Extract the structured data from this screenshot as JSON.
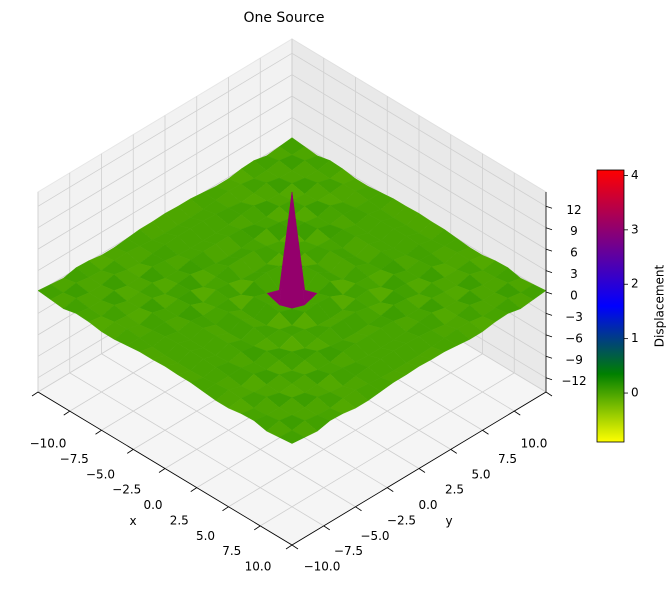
{
  "chart_data": {
    "type": "surface",
    "title": "One Source",
    "xlabel": "x",
    "ylabel": "y",
    "x": [
      -10,
      -9,
      -8,
      -7,
      -6,
      -5,
      -4,
      -3,
      -2,
      -1,
      0,
      1,
      2,
      3,
      4,
      5,
      6,
      7,
      8,
      9,
      10
    ],
    "y": [
      -10,
      -9,
      -8,
      -7,
      -6,
      -5,
      -4,
      -3,
      -2,
      -1,
      0,
      1,
      2,
      3,
      4,
      5,
      6,
      7,
      8,
      9,
      10
    ],
    "z": [
      [
        0.2,
        0,
        -0.2,
        0.2,
        0.1,
        -0.2,
        -0.2,
        0,
        0.2,
        0.2,
        0.3,
        0.2,
        0.2,
        0,
        -0.2,
        -0.2,
        0.1,
        0.2,
        -0.2,
        0,
        0.2
      ],
      [
        0,
        -0.1,
        0.2,
        -0.1,
        -0.2,
        0.1,
        0.2,
        0,
        -0.2,
        -0.3,
        -0.3,
        -0.3,
        -0.2,
        0,
        0.2,
        0.1,
        -0.2,
        -0.1,
        0.2,
        -0.1,
        0
      ],
      [
        -0.2,
        0.2,
        -0.1,
        -0.1,
        0.3,
        -0.1,
        -0.3,
        0,
        0.2,
        0.3,
        0.3,
        0.3,
        0.2,
        0,
        -0.3,
        -0.1,
        0.3,
        -0.1,
        -0.1,
        0.2,
        -0.2
      ],
      [
        0.2,
        -0.1,
        -0.1,
        0.2,
        -0.2,
        -0.1,
        0.3,
        0.1,
        -0.2,
        -0.3,
        -0.3,
        -0.3,
        -0.2,
        0.1,
        0.3,
        -0.1,
        -0.2,
        0.2,
        -0.1,
        -0.1,
        0.2
      ],
      [
        0.1,
        -0.2,
        0.3,
        -0.2,
        0,
        0.2,
        -0.2,
        -0.2,
        0.2,
        0.3,
        0.3,
        0.3,
        0.2,
        -0.2,
        -0.2,
        0.2,
        0,
        -0.2,
        0.3,
        -0.2,
        0.1
      ],
      [
        -0.2,
        0.1,
        -0.1,
        -0.1,
        0.2,
        -0.3,
        0.1,
        0.3,
        -0.1,
        -0.3,
        -0.4,
        -0.3,
        -0.1,
        0.3,
        0.1,
        -0.3,
        0.2,
        -0.1,
        -0.1,
        0.1,
        -0.2
      ],
      [
        -0.2,
        0.2,
        -0.3,
        0.3,
        -0.2,
        0.1,
        0.2,
        -0.4,
        0,
        0.4,
        0.4,
        0.4,
        0,
        -0.4,
        0.2,
        0.1,
        -0.2,
        0.3,
        -0.3,
        0.2,
        -0.2
      ],
      [
        0,
        0,
        0,
        0.1,
        -0.2,
        0.3,
        -0.4,
        0.3,
        0.1,
        -0.4,
        -0.5,
        -0.4,
        0.1,
        0.3,
        -0.4,
        0.3,
        -0.2,
        0.1,
        0,
        0,
        0
      ],
      [
        0.2,
        -0.2,
        0.2,
        -0.2,
        0.2,
        -0.1,
        0,
        0.1,
        -0.4,
        0.4,
        0.6,
        0.4,
        -0.4,
        0.1,
        0,
        -0.1,
        0.2,
        -0.2,
        0.2,
        -0.2,
        0.2
      ],
      [
        0.2,
        -0.3,
        0.3,
        -0.3,
        0.3,
        -0.3,
        0.4,
        -0.4,
        0.4,
        -0.2,
        -0.8,
        -0.2,
        0.4,
        -0.4,
        0.4,
        -0.3,
        0.3,
        -0.3,
        0.3,
        -0.3,
        0.2
      ],
      [
        0.3,
        -0.3,
        0.3,
        -0.3,
        0.3,
        -0.4,
        0.4,
        -0.5,
        0.6,
        -0.8,
        14,
        -0.8,
        0.6,
        -0.5,
        0.4,
        -0.4,
        0.3,
        -0.3,
        0.3,
        -0.3,
        0.3
      ],
      [
        0.2,
        -0.3,
        0.3,
        -0.3,
        0.3,
        -0.3,
        0.4,
        -0.4,
        0.4,
        -0.2,
        -0.8,
        -0.2,
        0.4,
        -0.4,
        0.4,
        -0.3,
        0.3,
        -0.3,
        0.3,
        -0.3,
        0.2
      ],
      [
        0.2,
        -0.2,
        0.2,
        -0.2,
        0.2,
        -0.1,
        0,
        0.1,
        -0.4,
        0.4,
        0.6,
        0.4,
        -0.4,
        0.1,
        0,
        -0.1,
        0.2,
        -0.2,
        0.2,
        -0.2,
        0.2
      ],
      [
        0,
        0,
        0,
        0.1,
        -0.2,
        0.3,
        -0.4,
        0.3,
        0.1,
        -0.4,
        -0.5,
        -0.4,
        0.1,
        0.3,
        -0.4,
        0.3,
        -0.2,
        0.1,
        0,
        0,
        0
      ],
      [
        -0.2,
        0.2,
        -0.3,
        0.3,
        -0.2,
        0.1,
        0.2,
        -0.4,
        0,
        0.4,
        0.4,
        0.4,
        0,
        -0.4,
        0.2,
        0.1,
        -0.2,
        0.3,
        -0.3,
        0.2,
        -0.2
      ],
      [
        -0.2,
        0.1,
        -0.1,
        -0.1,
        0.2,
        -0.3,
        0.1,
        0.3,
        -0.1,
        -0.3,
        -0.4,
        -0.3,
        -0.1,
        0.3,
        0.1,
        -0.3,
        0.2,
        -0.1,
        -0.1,
        0.1,
        -0.2
      ],
      [
        0.1,
        -0.2,
        0.3,
        -0.2,
        0,
        0.2,
        -0.2,
        -0.2,
        0.2,
        0.3,
        0.3,
        0.3,
        0.2,
        -0.2,
        -0.2,
        0.2,
        0,
        -0.2,
        0.3,
        -0.2,
        0.1
      ],
      [
        0.2,
        -0.1,
        -0.1,
        0.2,
        -0.2,
        -0.1,
        0.3,
        0.1,
        -0.2,
        -0.3,
        -0.3,
        -0.3,
        -0.2,
        0.1,
        0.3,
        -0.1,
        -0.2,
        0.2,
        -0.1,
        -0.1,
        0.2
      ],
      [
        -0.2,
        0.2,
        -0.1,
        -0.1,
        0.3,
        -0.1,
        -0.3,
        0,
        0.2,
        0.3,
        0.3,
        0.3,
        0.2,
        0,
        -0.3,
        -0.1,
        0.3,
        -0.1,
        -0.1,
        0.2,
        -0.2
      ],
      [
        0,
        -0.1,
        0.2,
        -0.1,
        -0.2,
        0.1,
        0.2,
        0,
        -0.2,
        -0.3,
        -0.3,
        -0.3,
        -0.2,
        0,
        0.2,
        0.1,
        -0.2,
        -0.1,
        0.2,
        -0.1,
        0
      ],
      [
        0.2,
        0,
        -0.2,
        0.2,
        0.1,
        -0.2,
        -0.2,
        0,
        0.2,
        0.2,
        0.3,
        0.2,
        0.2,
        0,
        -0.2,
        -0.2,
        0.1,
        0.2,
        -0.2,
        0,
        0.2
      ]
    ],
    "xlim": [
      -10,
      10
    ],
    "ylim": [
      -10,
      10
    ],
    "zlim": [
      -14,
      14
    ],
    "xticks": [
      {
        "value": -10,
        "label": "−10.0"
      },
      {
        "value": -7.5,
        "label": "−7.5"
      },
      {
        "value": -5,
        "label": "−5.0"
      },
      {
        "value": -2.5,
        "label": "−2.5"
      },
      {
        "value": 0,
        "label": "0.0"
      },
      {
        "value": 2.5,
        "label": "2.5"
      },
      {
        "value": 5,
        "label": "5.0"
      },
      {
        "value": 7.5,
        "label": "7.5"
      },
      {
        "value": 10,
        "label": "10.0"
      }
    ],
    "yticks": [
      {
        "value": -10,
        "label": "−10.0"
      },
      {
        "value": -7.5,
        "label": "−7.5"
      },
      {
        "value": -5,
        "label": "−5.0"
      },
      {
        "value": -2.5,
        "label": "−2.5"
      },
      {
        "value": 0,
        "label": "0.0"
      },
      {
        "value": 2.5,
        "label": "2.5"
      },
      {
        "value": 5,
        "label": "5.0"
      },
      {
        "value": 7.5,
        "label": "7.5"
      },
      {
        "value": 10,
        "label": "10.0"
      }
    ],
    "zticks": [
      {
        "value": -12,
        "label": "−12"
      },
      {
        "value": -9,
        "label": "−9"
      },
      {
        "value": -6,
        "label": "−6"
      },
      {
        "value": -3,
        "label": "−3"
      },
      0,
      3,
      6,
      9,
      12
    ],
    "grid": true,
    "colorbar": {
      "label": "Displacement",
      "lim": [
        -0.9,
        4.1
      ],
      "ticks": [
        0,
        1,
        2,
        3,
        4
      ],
      "colors": [
        "#ffff00",
        "#008000",
        "#0000ff",
        "#800080",
        "#ff0000"
      ]
    }
  }
}
